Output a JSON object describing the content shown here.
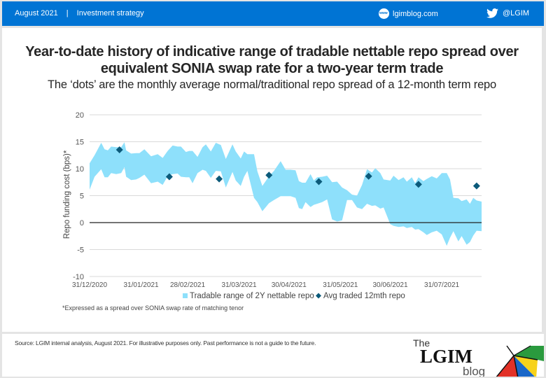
{
  "header": {
    "date": "August 2021",
    "separator": "|",
    "section": "Investment strategy",
    "website": "lgimblog.com",
    "twitter": "@LGIM",
    "colors": {
      "band": "#0074d4"
    }
  },
  "chart_title": "Year-to-date history of indicative range of tradable nettable repo spread over equivalent SONIA swap rate for a two-year term trade",
  "chart_title_line1": "Year-to-date history of indicative range of tradable nettable repo spread over",
  "chart_title_line2": "equivalent SONIA swap rate for a two-year term trade",
  "chart_subtitle": "The ‘dots’ are the monthly average normal/traditional repo spread of a 12-month term repo",
  "footnote": "*Expressed as a spread over SONIA swap rate of matching tenor",
  "source": "Source: LGIM internal analysis, August 2021. For illustrative purposes only. Past performance is not a guide to the future.",
  "logo": {
    "the": "The",
    "name": "LGIM",
    "blog": "blog"
  },
  "chart_data": {
    "type": "area",
    "title": "Year-to-date history of indicative range of tradable nettable repo spread over equivalent SONIA swap rate for a two-year term trade",
    "ylabel": "Repo funding cost (bps)*",
    "xlabel": "",
    "ylim": [
      -10,
      20
    ],
    "yticks": [
      20,
      15,
      10,
      5,
      0,
      -5,
      -10
    ],
    "xlim_days": [
      0,
      236
    ],
    "xticks": [
      {
        "day": 0,
        "label": "31/12/2020"
      },
      {
        "day": 31,
        "label": "31/01/2021"
      },
      {
        "day": 59,
        "label": "28/02/2021"
      },
      {
        "day": 90,
        "label": "31/03/2021"
      },
      {
        "day": 120,
        "label": "30/04/2021"
      },
      {
        "day": 151,
        "label": "31/05/2021"
      },
      {
        "day": 181,
        "label": "30/06/2021"
      },
      {
        "day": 212,
        "label": "31/07/2021"
      }
    ],
    "grid": true,
    "legend_position": "bottom",
    "colors": {
      "range": "#8ee0fb",
      "dots": "#0b5a7a",
      "zero_line": "#222222",
      "grid": "#d9d9d9"
    },
    "series": [
      {
        "name": "Tradable range of 2Y nettable repo",
        "kind": "range",
        "day": [
          0,
          3,
          7,
          9,
          11,
          13,
          16,
          19,
          21,
          22,
          25,
          28,
          30,
          33,
          37,
          41,
          44,
          47,
          50,
          53,
          55,
          58,
          60,
          62,
          65,
          68,
          70,
          73,
          76,
          79,
          82,
          86,
          88,
          91,
          93,
          95,
          99,
          101,
          104,
          108,
          111,
          115,
          118,
          121,
          124,
          126,
          128,
          130,
          133,
          135,
          137,
          140,
          143,
          146,
          149,
          152,
          155,
          158,
          161,
          164,
          167,
          170,
          172,
          175,
          177,
          181,
          183,
          186,
          189,
          191,
          194,
          196,
          198,
          201,
          203,
          206,
          209,
          212,
          215,
          217,
          219,
          222,
          224,
          227,
          229,
          231,
          233,
          236
        ],
        "high": [
          11,
          12.5,
          14.8,
          13.6,
          13.4,
          14.1,
          14,
          14,
          14.9,
          13.4,
          12.8,
          12.9,
          12.9,
          13.6,
          12.3,
          12.7,
          12,
          13.3,
          14.3,
          14.1,
          14.1,
          13.1,
          13.3,
          13.3,
          12.2,
          14,
          14.5,
          13.2,
          14.8,
          14.4,
          11.8,
          14.5,
          13.2,
          11.9,
          13.2,
          12.7,
          12.7,
          9.5,
          6.8,
          8.6,
          9.6,
          11.4,
          9.8,
          9.8,
          9.7,
          7.7,
          7.4,
          7.4,
          9,
          7.8,
          8.4,
          8.5,
          8.7,
          7.5,
          7.6,
          6.5,
          6,
          5.2,
          5,
          7,
          9.9,
          9.3,
          10.1,
          9.2,
          8,
          7.8,
          8.7,
          7.9,
          8.4,
          7.6,
          8.4,
          7.3,
          8.4,
          7.7,
          8.1,
          8.6,
          8.2,
          9.2,
          9.2,
          8,
          4.6,
          4.5,
          4,
          4.3,
          3.5,
          4.6,
          4.1,
          3.9
        ],
        "low": [
          6.1,
          8.5,
          9.9,
          8.4,
          8.4,
          9.2,
          9,
          9.2,
          10.3,
          8.5,
          7.9,
          8,
          8.3,
          8.9,
          7.3,
          7.6,
          7,
          8.6,
          9,
          9.1,
          8.5,
          8.4,
          8.4,
          7.3,
          9.2,
          9.8,
          9.6,
          8.3,
          9.6,
          9.5,
          6.5,
          9.4,
          7.8,
          6.8,
          8.5,
          9.6,
          4.6,
          3.8,
          2.1,
          3.6,
          4.2,
          4.9,
          4.9,
          4.9,
          4.6,
          2.7,
          2.5,
          3.8,
          2.9,
          3.3,
          3.5,
          3.8,
          4.3,
          0.6,
          0.2,
          0.4,
          4.2,
          4.2,
          2.8,
          2.5,
          3.5,
          3.1,
          3.2,
          2.6,
          2.8,
          -0.3,
          -0.6,
          -0.8,
          -0.7,
          -1,
          -0.8,
          -1.3,
          -1.2,
          -1.8,
          -2.3,
          -1.8,
          -1.5,
          -2.2,
          -4.3,
          -2.8,
          -1.6,
          -3.5,
          -2.5,
          -4.1,
          -3.6,
          -2.4,
          -1.5,
          -1.6
        ]
      },
      {
        "name": "Avg traded 12mth repo",
        "kind": "scatter",
        "points": [
          {
            "day": 18,
            "value": 13.5
          },
          {
            "day": 48,
            "value": 8.5
          },
          {
            "day": 78,
            "value": 8.1
          },
          {
            "day": 108,
            "value": 8.8
          },
          {
            "day": 138,
            "value": 7.6
          },
          {
            "day": 168,
            "value": 8.6
          },
          {
            "day": 198,
            "value": 7.1
          },
          {
            "day": 233,
            "value": 6.8
          }
        ]
      }
    ]
  }
}
